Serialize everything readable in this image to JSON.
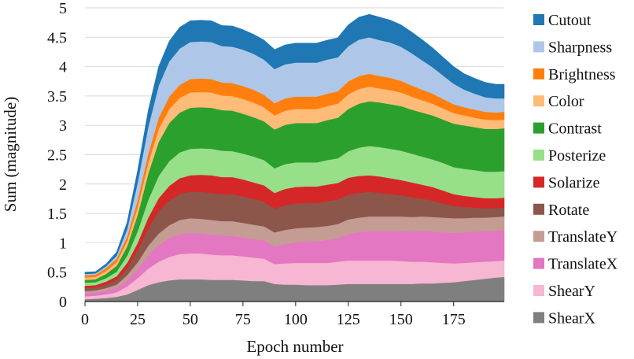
{
  "chart_data": {
    "type": "area",
    "stacked": true,
    "title": "",
    "xlabel": "Epoch number",
    "ylabel": "Sum (magnitude)",
    "xlim": [
      0,
      199
    ],
    "ylim": [
      0,
      5
    ],
    "x_ticks": [
      "0",
      "25",
      "50",
      "75",
      "100",
      "125",
      "150",
      "175"
    ],
    "y_ticks": [
      "0",
      "0.5",
      "1",
      "1.5",
      "2",
      "2.5",
      "3",
      "3.5",
      "4",
      "4.5",
      "5"
    ],
    "grid": "horizontal",
    "legend_position": "right",
    "x": [
      0,
      5,
      10,
      15,
      20,
      25,
      30,
      35,
      40,
      45,
      50,
      55,
      60,
      65,
      70,
      75,
      80,
      85,
      90,
      95,
      100,
      105,
      110,
      115,
      120,
      125,
      130,
      135,
      140,
      145,
      150,
      155,
      160,
      165,
      170,
      175,
      180,
      185,
      190,
      195,
      199
    ],
    "series": [
      {
        "name": "ShearX",
        "color": "#7f7f7f",
        "values": [
          0.04,
          0.05,
          0.06,
          0.08,
          0.12,
          0.2,
          0.28,
          0.33,
          0.36,
          0.38,
          0.38,
          0.38,
          0.37,
          0.37,
          0.37,
          0.36,
          0.35,
          0.35,
          0.3,
          0.29,
          0.29,
          0.28,
          0.28,
          0.28,
          0.29,
          0.3,
          0.3,
          0.3,
          0.3,
          0.3,
          0.3,
          0.3,
          0.31,
          0.31,
          0.32,
          0.33,
          0.35,
          0.37,
          0.39,
          0.41,
          0.42
        ]
      },
      {
        "name": "ShearY",
        "color": "#f7b6d2",
        "values": [
          0.05,
          0.05,
          0.06,
          0.08,
          0.14,
          0.2,
          0.28,
          0.35,
          0.4,
          0.43,
          0.44,
          0.44,
          0.43,
          0.42,
          0.42,
          0.41,
          0.4,
          0.38,
          0.34,
          0.36,
          0.37,
          0.38,
          0.38,
          0.38,
          0.39,
          0.4,
          0.4,
          0.4,
          0.4,
          0.4,
          0.39,
          0.38,
          0.37,
          0.36,
          0.34,
          0.32,
          0.31,
          0.3,
          0.29,
          0.28,
          0.28
        ]
      },
      {
        "name": "TranslateX",
        "color": "#e377c2",
        "values": [
          0.05,
          0.05,
          0.06,
          0.07,
          0.1,
          0.15,
          0.22,
          0.28,
          0.32,
          0.34,
          0.35,
          0.34,
          0.34,
          0.33,
          0.33,
          0.32,
          0.32,
          0.31,
          0.3,
          0.33,
          0.35,
          0.36,
          0.37,
          0.39,
          0.4,
          0.45,
          0.48,
          0.5,
          0.5,
          0.5,
          0.51,
          0.51,
          0.52,
          0.52,
          0.52,
          0.52,
          0.52,
          0.52,
          0.52,
          0.52,
          0.52
        ]
      },
      {
        "name": "TranslateY",
        "color": "#c49c94",
        "values": [
          0.04,
          0.04,
          0.05,
          0.06,
          0.09,
          0.12,
          0.17,
          0.2,
          0.22,
          0.24,
          0.25,
          0.25,
          0.25,
          0.25,
          0.25,
          0.25,
          0.24,
          0.24,
          0.24,
          0.24,
          0.24,
          0.24,
          0.24,
          0.24,
          0.24,
          0.25,
          0.25,
          0.25,
          0.25,
          0.25,
          0.25,
          0.25,
          0.25,
          0.25,
          0.25,
          0.25,
          0.24,
          0.24,
          0.23,
          0.23,
          0.23
        ]
      },
      {
        "name": "Rotate",
        "color": "#8c564b",
        "values": [
          0.05,
          0.05,
          0.06,
          0.08,
          0.12,
          0.2,
          0.3,
          0.38,
          0.42,
          0.44,
          0.45,
          0.46,
          0.46,
          0.46,
          0.46,
          0.45,
          0.44,
          0.42,
          0.4,
          0.42,
          0.42,
          0.42,
          0.41,
          0.42,
          0.42,
          0.42,
          0.42,
          0.42,
          0.4,
          0.38,
          0.36,
          0.34,
          0.3,
          0.28,
          0.24,
          0.21,
          0.19,
          0.17,
          0.16,
          0.15,
          0.15
        ]
      },
      {
        "name": "Solarize",
        "color": "#d62728",
        "values": [
          0.04,
          0.04,
          0.05,
          0.06,
          0.09,
          0.13,
          0.18,
          0.22,
          0.25,
          0.27,
          0.28,
          0.29,
          0.3,
          0.29,
          0.29,
          0.29,
          0.28,
          0.28,
          0.27,
          0.28,
          0.28,
          0.28,
          0.28,
          0.28,
          0.28,
          0.29,
          0.29,
          0.28,
          0.28,
          0.27,
          0.26,
          0.25,
          0.24,
          0.23,
          0.22,
          0.2,
          0.19,
          0.18,
          0.17,
          0.17,
          0.17
        ]
      },
      {
        "name": "Posterize",
        "color": "#98df8a",
        "values": [
          0.05,
          0.05,
          0.06,
          0.08,
          0.12,
          0.2,
          0.3,
          0.38,
          0.42,
          0.44,
          0.45,
          0.45,
          0.45,
          0.45,
          0.44,
          0.44,
          0.44,
          0.43,
          0.42,
          0.42,
          0.42,
          0.41,
          0.41,
          0.42,
          0.42,
          0.45,
          0.48,
          0.5,
          0.5,
          0.5,
          0.5,
          0.49,
          0.48,
          0.47,
          0.47,
          0.46,
          0.46,
          0.46,
          0.45,
          0.45,
          0.45
        ]
      },
      {
        "name": "Contrast",
        "color": "#2ca02c",
        "values": [
          0.05,
          0.05,
          0.07,
          0.1,
          0.16,
          0.28,
          0.45,
          0.58,
          0.65,
          0.68,
          0.7,
          0.7,
          0.7,
          0.69,
          0.69,
          0.68,
          0.67,
          0.66,
          0.66,
          0.67,
          0.67,
          0.67,
          0.67,
          0.68,
          0.69,
          0.72,
          0.75,
          0.76,
          0.76,
          0.76,
          0.76,
          0.75,
          0.75,
          0.75,
          0.74,
          0.74,
          0.74,
          0.73,
          0.73,
          0.73,
          0.73
        ]
      },
      {
        "name": "Color",
        "color": "#ffbb78",
        "values": [
          0.04,
          0.04,
          0.05,
          0.06,
          0.09,
          0.13,
          0.18,
          0.22,
          0.24,
          0.25,
          0.26,
          0.26,
          0.26,
          0.25,
          0.25,
          0.25,
          0.25,
          0.24,
          0.24,
          0.24,
          0.24,
          0.24,
          0.24,
          0.24,
          0.24,
          0.25,
          0.25,
          0.25,
          0.24,
          0.24,
          0.23,
          0.22,
          0.21,
          0.2,
          0.19,
          0.18,
          0.17,
          0.16,
          0.16,
          0.15,
          0.15
        ]
      },
      {
        "name": "Brightness",
        "color": "#ff7f0e",
        "values": [
          0.04,
          0.04,
          0.05,
          0.06,
          0.08,
          0.12,
          0.16,
          0.19,
          0.21,
          0.22,
          0.23,
          0.23,
          0.23,
          0.22,
          0.22,
          0.22,
          0.22,
          0.21,
          0.21,
          0.21,
          0.21,
          0.21,
          0.21,
          0.21,
          0.21,
          0.22,
          0.22,
          0.22,
          0.21,
          0.21,
          0.2,
          0.19,
          0.18,
          0.17,
          0.16,
          0.15,
          0.14,
          0.14,
          0.13,
          0.13,
          0.13
        ]
      },
      {
        "name": "Sharpness",
        "color": "#aec7e8",
        "values": [
          0.02,
          0.02,
          0.03,
          0.05,
          0.12,
          0.3,
          0.45,
          0.55,
          0.6,
          0.62,
          0.63,
          0.63,
          0.63,
          0.62,
          0.62,
          0.62,
          0.61,
          0.6,
          0.58,
          0.58,
          0.58,
          0.58,
          0.58,
          0.58,
          0.58,
          0.6,
          0.62,
          0.62,
          0.61,
          0.6,
          0.58,
          0.55,
          0.5,
          0.45,
          0.4,
          0.35,
          0.3,
          0.27,
          0.25,
          0.24,
          0.23
        ]
      },
      {
        "name": "Cutout",
        "color": "#1f77b4",
        "values": [
          0.03,
          0.03,
          0.04,
          0.06,
          0.12,
          0.2,
          0.28,
          0.32,
          0.34,
          0.36,
          0.36,
          0.36,
          0.36,
          0.35,
          0.35,
          0.34,
          0.33,
          0.33,
          0.33,
          0.33,
          0.33,
          0.33,
          0.33,
          0.33,
          0.33,
          0.36,
          0.38,
          0.39,
          0.39,
          0.38,
          0.37,
          0.36,
          0.35,
          0.33,
          0.31,
          0.29,
          0.27,
          0.26,
          0.25,
          0.24,
          0.24
        ]
      }
    ]
  }
}
